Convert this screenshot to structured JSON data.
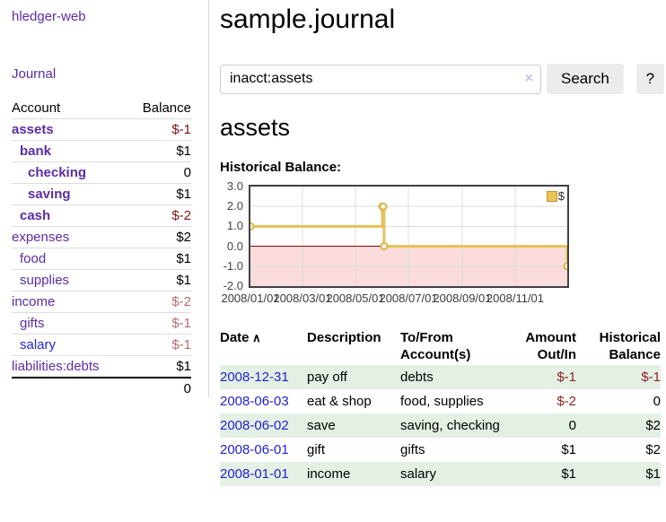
{
  "app": {
    "brand": "hledger-web"
  },
  "nav": {
    "journal": "Journal"
  },
  "sidebar": {
    "header": {
      "account": "Account",
      "balance": "Balance"
    },
    "accounts": [
      {
        "name": "assets",
        "balance": "$-1",
        "indent": 1,
        "bold": true,
        "negative": true,
        "link_color": "purple"
      },
      {
        "name": "bank",
        "balance": "$1",
        "indent": 2,
        "bold": true,
        "negative": false,
        "link_color": "purple"
      },
      {
        "name": "checking",
        "balance": "0",
        "indent": 3,
        "bold": true,
        "negative": false,
        "link_color": "purple"
      },
      {
        "name": "saving",
        "balance": "$1",
        "indent": 3,
        "bold": true,
        "negative": false,
        "link_color": "purple"
      },
      {
        "name": "cash",
        "balance": "$-2",
        "indent": 2,
        "bold": true,
        "negative": true,
        "link_color": "purple"
      },
      {
        "name": "expenses",
        "balance": "$2",
        "indent": 1,
        "bold": false,
        "negative": false,
        "link_color": "purple"
      },
      {
        "name": "food",
        "balance": "$1",
        "indent": 2,
        "bold": false,
        "negative": false,
        "link_color": "purple"
      },
      {
        "name": "supplies",
        "balance": "$1",
        "indent": 2,
        "bold": false,
        "negative": false,
        "link_color": "purple"
      },
      {
        "name": "income",
        "balance": "$-2",
        "indent": 1,
        "bold": false,
        "negative": true,
        "link_color": "purple"
      },
      {
        "name": "gifts",
        "balance": "$-1",
        "indent": 2,
        "bold": false,
        "negative": true,
        "link_color": "purple"
      },
      {
        "name": "salary",
        "balance": "$-1",
        "indent": 2,
        "bold": false,
        "negative": true,
        "link_color": "blue"
      },
      {
        "name": "liabilities:debts",
        "balance": "$1",
        "indent": 1,
        "bold": false,
        "negative": false,
        "link_color": "purple"
      }
    ],
    "total": "0"
  },
  "header": {
    "title": "sample.journal"
  },
  "search": {
    "value": "inacct:assets",
    "clear_icon": "×",
    "button_label": "Search",
    "help_label": "?"
  },
  "account_page": {
    "heading": "assets",
    "chart_title": "Historical Balance:"
  },
  "chart_data": {
    "type": "line",
    "step": true,
    "title": "Historical Balance:",
    "xlim": [
      "2008-01-01",
      "2008-12-31"
    ],
    "ylim": [
      -2,
      3
    ],
    "yticks": [
      "3.0",
      "2.0",
      "1.0",
      "0.0",
      "-1.0",
      "-2.0"
    ],
    "xticks": [
      "2008/01/01",
      "2008/03/01",
      "2008/05/01",
      "2008/07/01",
      "2008/09/01",
      "2008/11/01"
    ],
    "grid": true,
    "legend_position": "top-right",
    "series": [
      {
        "name": "$",
        "color": "#e5c158",
        "marker_stroke": "#ddb23e",
        "swatch_color": "#e9c653",
        "points": [
          {
            "x": "2008-01-01",
            "y": 1
          },
          {
            "x": "2008-06-01",
            "y": 2
          },
          {
            "x": "2008-06-02",
            "y": 2
          },
          {
            "x": "2008-06-03",
            "y": 0
          },
          {
            "x": "2008-12-31",
            "y": -1
          }
        ]
      }
    ],
    "negative_region_color": "#fbdcdc",
    "zero_line_color": "#990000"
  },
  "register": {
    "columns": [
      {
        "label": "Date",
        "lines": [
          "Date"
        ],
        "align": "left",
        "sort_icon": "∧",
        "sortable": true
      },
      {
        "label": "Description",
        "lines": [
          "Description"
        ],
        "align": "left"
      },
      {
        "label": "To/From Account(s)",
        "lines": [
          "To/From",
          "Account(s)"
        ],
        "align": "left"
      },
      {
        "label": "Amount Out/In",
        "lines": [
          "Amount",
          "Out/In"
        ],
        "align": "right"
      },
      {
        "label": "Historical Balance",
        "lines": [
          "Historical",
          "Balance"
        ],
        "align": "right"
      }
    ],
    "rows": [
      {
        "date": "2008-12-31",
        "description": "pay off",
        "accounts": "debts",
        "amount": "$-1",
        "amount_negative": true,
        "balance": "$-1",
        "balance_negative": true
      },
      {
        "date": "2008-06-03",
        "description": "eat & shop",
        "accounts": "food, supplies",
        "amount": "$-2",
        "amount_negative": true,
        "balance": "0",
        "balance_negative": false
      },
      {
        "date": "2008-06-02",
        "description": "save",
        "accounts": "saving, checking",
        "amount": "0",
        "amount_negative": false,
        "balance": "$2",
        "balance_negative": false
      },
      {
        "date": "2008-06-01",
        "description": "gift",
        "accounts": "gifts",
        "amount": "$1",
        "amount_negative": false,
        "balance": "$2",
        "balance_negative": false
      },
      {
        "date": "2008-01-01",
        "description": "income",
        "accounts": "salary",
        "amount": "$1",
        "amount_negative": false,
        "balance": "$1",
        "balance_negative": false
      }
    ]
  }
}
